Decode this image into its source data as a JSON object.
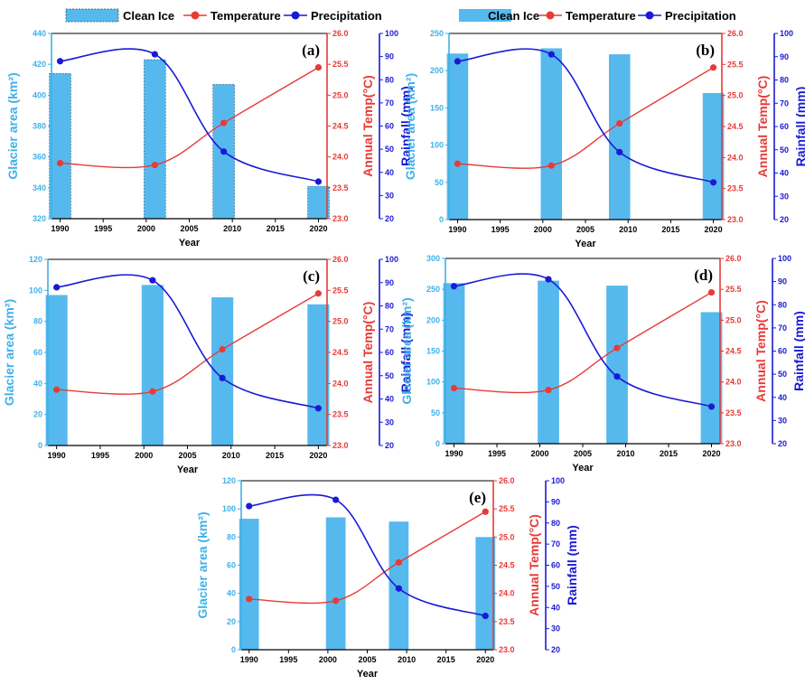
{
  "legend": {
    "bar_label": "Clean Ice",
    "temp_label": "Temperature",
    "precip_label": "Precipitation"
  },
  "colors": {
    "bar": "#56b9ee",
    "temp": "#e83a36",
    "precip": "#1a1ad6",
    "bar_axis": "#3fb0ea",
    "axis": "#000000"
  },
  "chart_data": [
    {
      "type": "bar",
      "panel_label": "(a)",
      "xlabel": "Year",
      "x_ticks": [
        "1990",
        "1995",
        "2000",
        "2005",
        "2010",
        "2015",
        "2020"
      ],
      "xlim": [
        1989,
        2021
      ],
      "series": [
        {
          "name": "Clean Ice",
          "x": [
            1990,
            2001,
            2009,
            2020
          ],
          "values": [
            414,
            423,
            407,
            341
          ]
        },
        {
          "name": "Temperature",
          "x": [
            1990,
            2001,
            2009,
            2020
          ],
          "values": [
            23.9,
            23.87,
            24.55,
            25.45
          ]
        },
        {
          "name": "Precipitation",
          "x": [
            1990,
            2001,
            2009,
            2020
          ],
          "values": [
            88,
            91,
            49,
            36
          ]
        }
      ],
      "left_axis": {
        "label": "Glacier area (km²)",
        "ylim": [
          320,
          440
        ],
        "ticks": [
          "320",
          "340",
          "360",
          "380",
          "400",
          "420",
          "440"
        ]
      },
      "temp_axis": {
        "label": "Annual Temp(°C)",
        "ylim": [
          23.0,
          26.0
        ],
        "ticks": [
          "23.0",
          "23.5",
          "24.0",
          "24.5",
          "25.0",
          "25.5",
          "26.0"
        ]
      },
      "rain_axis": {
        "label": "Rainfall (mm)",
        "ylim": [
          20,
          100
        ],
        "ticks": [
          "20",
          "30",
          "40",
          "50",
          "60",
          "70",
          "80",
          "90",
          "100"
        ]
      }
    },
    {
      "type": "bar",
      "panel_label": "(b)",
      "xlabel": "Year",
      "x_ticks": [
        "1990",
        "1995",
        "2000",
        "2005",
        "2010",
        "2015",
        "2020"
      ],
      "xlim": [
        1989,
        2021
      ],
      "series": [
        {
          "name": "Clean Ice",
          "x": [
            1990,
            2001,
            2009,
            2020
          ],
          "values": [
            223,
            230,
            222,
            170
          ]
        },
        {
          "name": "Temperature",
          "x": [
            1990,
            2001,
            2009,
            2020
          ],
          "values": [
            23.9,
            23.87,
            24.55,
            25.45
          ]
        },
        {
          "name": "Precipitation",
          "x": [
            1990,
            2001,
            2009,
            2020
          ],
          "values": [
            88,
            91,
            49,
            36
          ]
        }
      ],
      "left_axis": {
        "label": "Glacier area (km²)",
        "ylim": [
          0,
          250
        ],
        "ticks": [
          "0",
          "50",
          "100",
          "150",
          "200",
          "250"
        ]
      },
      "temp_axis": {
        "label": "Annual Temp(°C)",
        "ylim": [
          23.0,
          26.0
        ],
        "ticks": [
          "23.0",
          "23.5",
          "24.0",
          "24.5",
          "25.0",
          "25.5",
          "26.0"
        ]
      },
      "rain_axis": {
        "label": "Rainfall (mm)",
        "ylim": [
          20,
          100
        ],
        "ticks": [
          "20",
          "30",
          "40",
          "50",
          "60",
          "70",
          "80",
          "90",
          "100"
        ]
      }
    },
    {
      "type": "bar",
      "panel_label": "(c)",
      "xlabel": "Year",
      "x_ticks": [
        "1990",
        "1995",
        "2000",
        "2005",
        "2010",
        "2015",
        "2020"
      ],
      "xlim": [
        1989,
        2021
      ],
      "series": [
        {
          "name": "Clean Ice",
          "x": [
            1990,
            2001,
            2009,
            2020
          ],
          "values": [
            97,
            103.5,
            95.5,
            91
          ]
        },
        {
          "name": "Temperature",
          "x": [
            1990,
            2001,
            2009,
            2020
          ],
          "values": [
            23.9,
            23.87,
            24.55,
            25.45
          ]
        },
        {
          "name": "Precipitation",
          "x": [
            1990,
            2001,
            2009,
            2020
          ],
          "values": [
            88,
            91,
            49,
            36
          ]
        }
      ],
      "left_axis": {
        "label": "Glacier area (km²)",
        "ylim": [
          0,
          120
        ],
        "ticks": [
          "0",
          "20",
          "40",
          "60",
          "80",
          "100",
          "120"
        ]
      },
      "temp_axis": {
        "label": "Annual Temp(°C)",
        "ylim": [
          23.0,
          26.0
        ],
        "ticks": [
          "23.0",
          "23.5",
          "24.0",
          "24.5",
          "25.0",
          "25.5",
          "26.0"
        ]
      },
      "rain_axis": {
        "label": "Rainfall (mm)",
        "ylim": [
          20,
          100
        ],
        "ticks": [
          "20",
          "30",
          "40",
          "50",
          "60",
          "70",
          "80",
          "90",
          "100"
        ]
      }
    },
    {
      "type": "bar",
      "panel_label": "(d)",
      "xlabel": "Year",
      "x_ticks": [
        "1990",
        "1995",
        "2000",
        "2005",
        "2010",
        "2015",
        "2020"
      ],
      "xlim": [
        1989,
        2021
      ],
      "series": [
        {
          "name": "Clean Ice",
          "x": [
            1990,
            2001,
            2009,
            2020
          ],
          "values": [
            260,
            264,
            256,
            213
          ]
        },
        {
          "name": "Temperature",
          "x": [
            1990,
            2001,
            2009,
            2020
          ],
          "values": [
            23.9,
            23.87,
            24.55,
            25.45
          ]
        },
        {
          "name": "Precipitation",
          "x": [
            1990,
            2001,
            2009,
            2020
          ],
          "values": [
            88,
            91,
            49,
            36
          ]
        }
      ],
      "left_axis": {
        "label": "Glacier area (km²)",
        "ylim": [
          0,
          300
        ],
        "ticks": [
          "0",
          "50",
          "100",
          "150",
          "200",
          "250",
          "300"
        ]
      },
      "temp_axis": {
        "label": "Annual Temp(°C)",
        "ylim": [
          23.0,
          26.0
        ],
        "ticks": [
          "23.0",
          "23.5",
          "24.0",
          "24.5",
          "25.0",
          "25.5",
          "26.0"
        ]
      },
      "rain_axis": {
        "label": "Rainfall (mm)",
        "ylim": [
          20,
          100
        ],
        "ticks": [
          "20",
          "30",
          "40",
          "50",
          "60",
          "70",
          "80",
          "90",
          "100"
        ]
      }
    },
    {
      "type": "bar",
      "panel_label": "(e)",
      "xlabel": "Year",
      "x_ticks": [
        "1990",
        "1995",
        "2000",
        "2005",
        "2010",
        "2015",
        "2020"
      ],
      "xlim": [
        1989,
        2021
      ],
      "series": [
        {
          "name": "Clean Ice",
          "x": [
            1990,
            2001,
            2009,
            2020
          ],
          "values": [
            93,
            94,
            91,
            80
          ]
        },
        {
          "name": "Temperature",
          "x": [
            1990,
            2001,
            2009,
            2020
          ],
          "values": [
            23.9,
            23.87,
            24.55,
            25.45
          ]
        },
        {
          "name": "Precipitation",
          "x": [
            1990,
            2001,
            2009,
            2020
          ],
          "values": [
            88,
            91,
            49,
            36
          ]
        }
      ],
      "left_axis": {
        "label": "Glacier area (km²)",
        "ylim": [
          0,
          120
        ],
        "ticks": [
          "0",
          "20",
          "40",
          "60",
          "80",
          "100",
          "120"
        ]
      },
      "temp_axis": {
        "label": "Annual Temp(°C)",
        "ylim": [
          23.0,
          26.0
        ],
        "ticks": [
          "23.0",
          "23.5",
          "24.0",
          "24.5",
          "25.0",
          "25.5",
          "26.0"
        ]
      },
      "rain_axis": {
        "label": "Rainfall (mm)",
        "ylim": [
          20,
          100
        ],
        "ticks": [
          "20",
          "30",
          "40",
          "50",
          "60",
          "70",
          "80",
          "90",
          "100"
        ]
      }
    }
  ]
}
